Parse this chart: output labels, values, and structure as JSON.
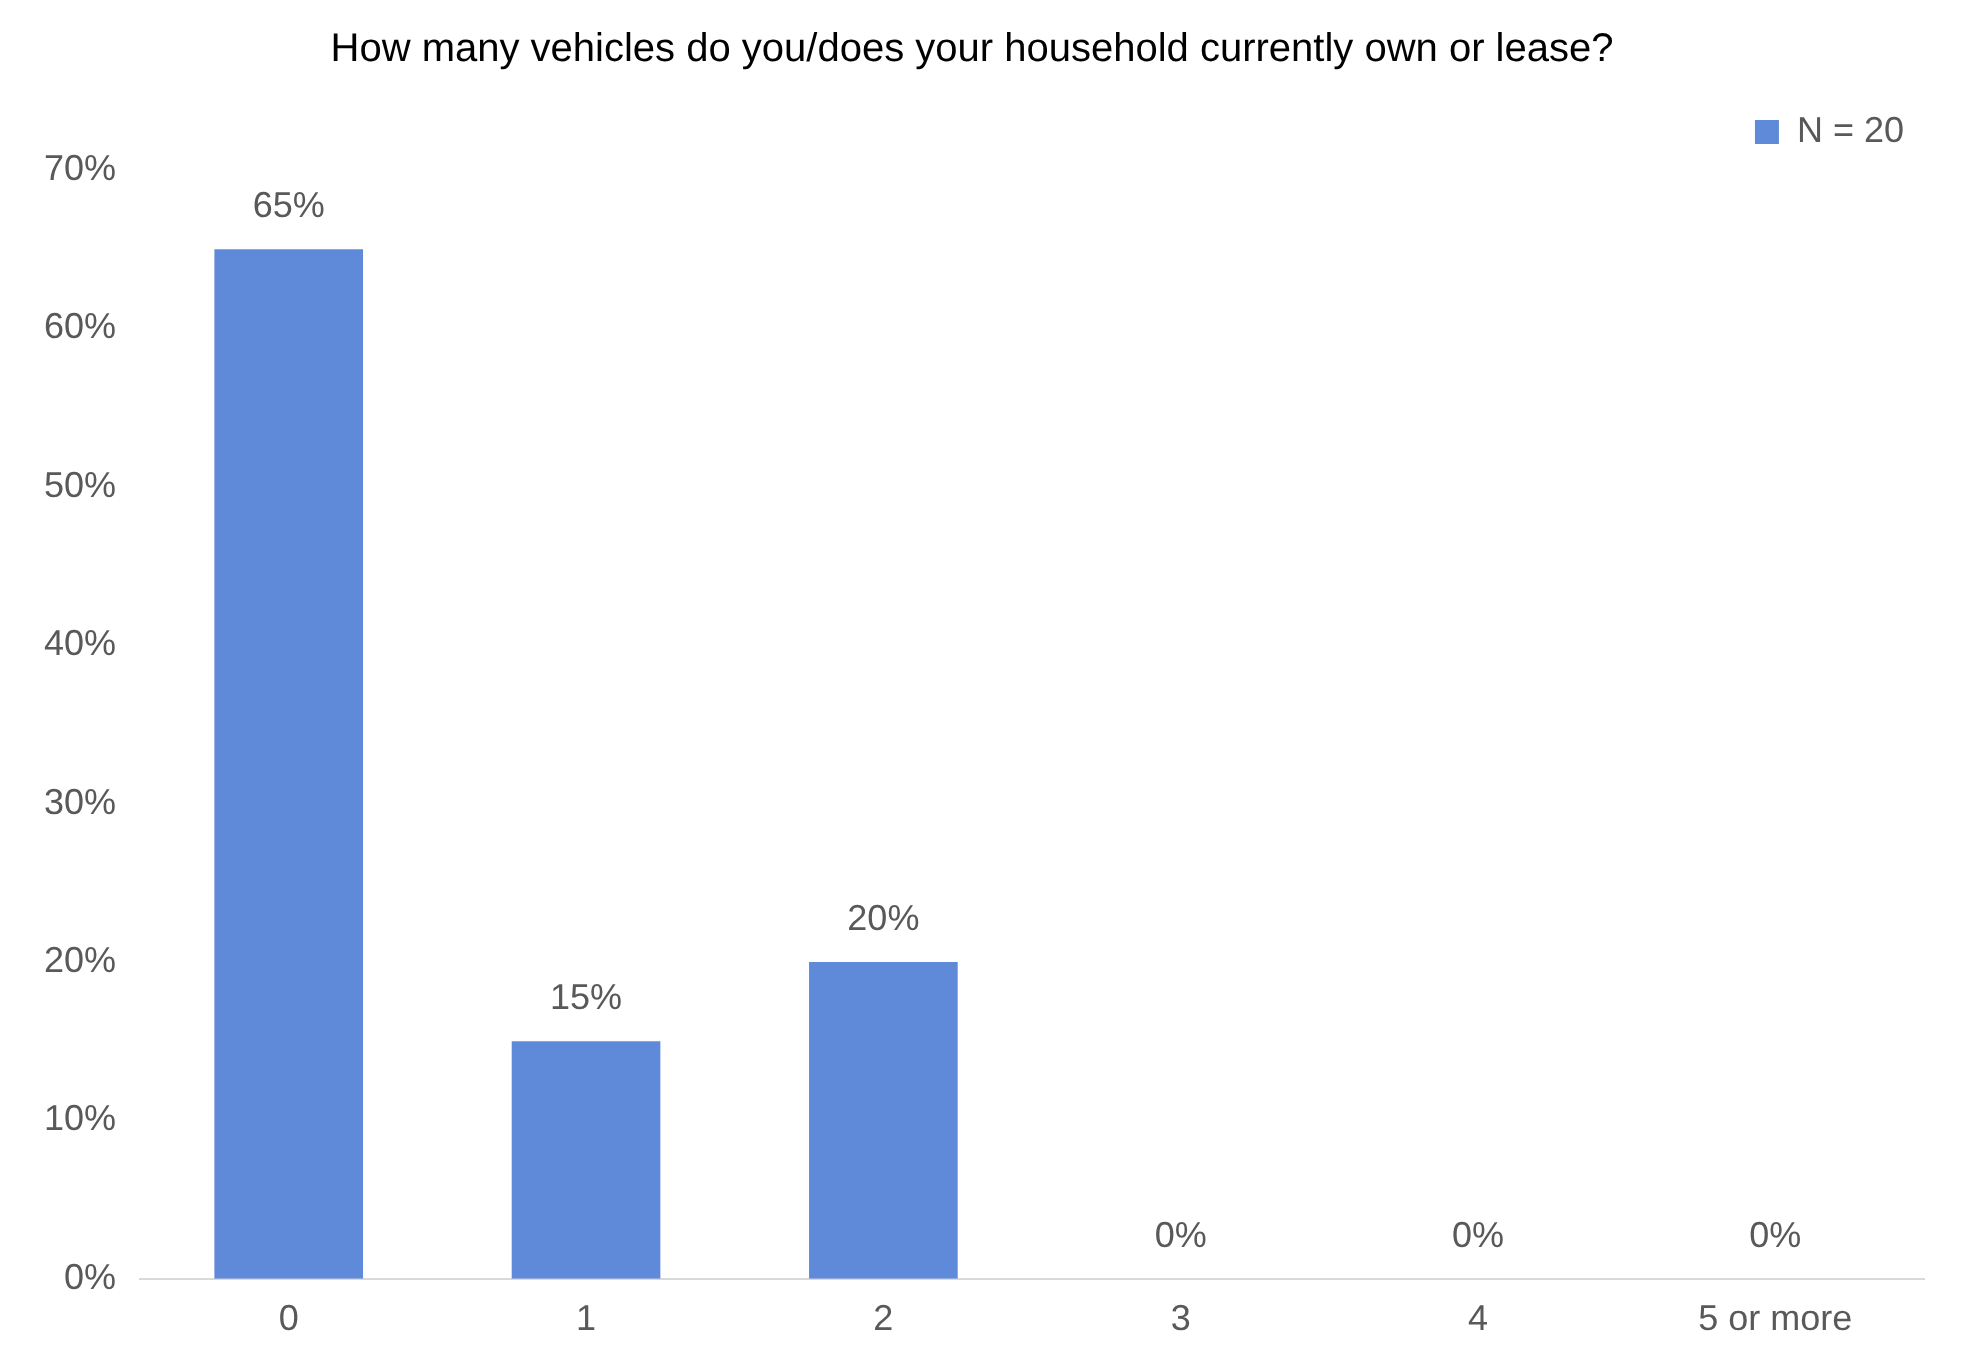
{
  "chart_data": {
    "type": "bar",
    "title": "How many vehicles do you/does your household currently own or lease?",
    "categories": [
      "0",
      "1",
      "2",
      "3",
      "4",
      "5 or more"
    ],
    "series": [
      {
        "name": "N = 20",
        "color": "#5f8ad9",
        "values": [
          65,
          15,
          20,
          0,
          0,
          0
        ],
        "value_labels": [
          "65%",
          "15%",
          "20%",
          "0%",
          "0%",
          "0%"
        ]
      }
    ],
    "ylim": [
      0,
      70
    ],
    "yticks": [
      {
        "value": 0,
        "label": "0%"
      },
      {
        "value": 10,
        "label": "10%"
      },
      {
        "value": 20,
        "label": "20%"
      },
      {
        "value": 30,
        "label": "30%"
      },
      {
        "value": 40,
        "label": "40%"
      },
      {
        "value": 50,
        "label": "50%"
      },
      {
        "value": 60,
        "label": "60%"
      },
      {
        "value": 70,
        "label": "70%"
      }
    ],
    "grid": false,
    "legend": "top right"
  }
}
